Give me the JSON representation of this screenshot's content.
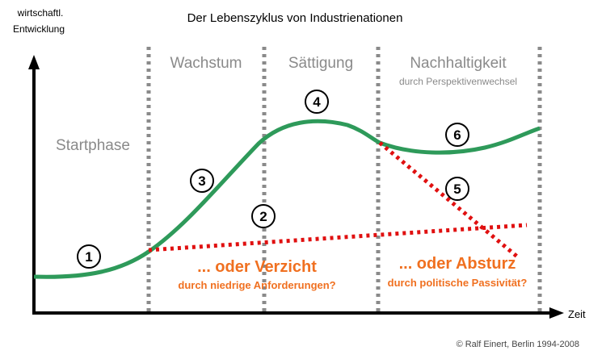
{
  "title": "Der Lebenszyklus von Industrienationen",
  "y_axis_label": [
    "wirtschaftl.",
    "Entwicklung"
  ],
  "x_axis_label": "Zeit",
  "phases": {
    "start": "Startphase",
    "growth": "Wachstum",
    "saturation": "Sättigung",
    "sustainability": "Nachhaltigkeit",
    "sustainability_sub": "durch Perspektivenwechsel"
  },
  "markers": [
    "1",
    "2",
    "3",
    "4",
    "5",
    "6"
  ],
  "alternatives": {
    "renounce": "... oder Verzicht",
    "renounce_sub": "durch niedrige Anforderungen?",
    "crash": "... oder Absturz",
    "crash_sub": "durch politische Passivität?"
  },
  "copyright": "© Ralf Einert, Berlin 1994-2008",
  "colors": {
    "growth_curve": "#2e9a5a",
    "alternative": "#e01010",
    "accent_text": "#f07020",
    "divider": "#8a8a8a"
  }
}
